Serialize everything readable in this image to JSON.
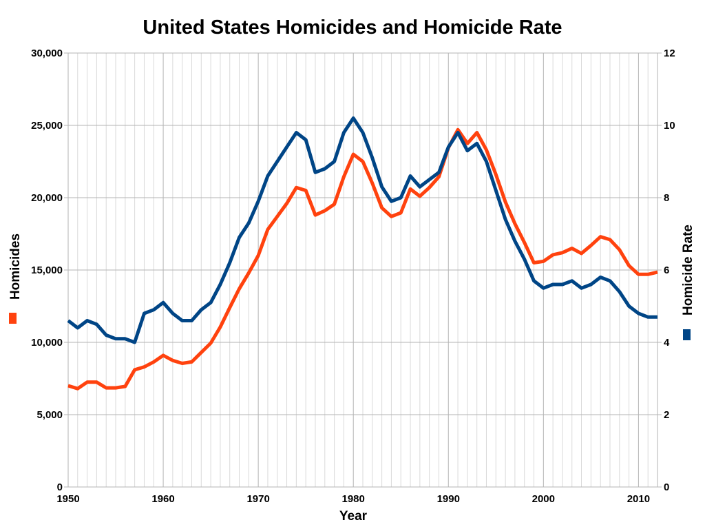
{
  "chart_data": {
    "type": "line",
    "title": "United States Homicides and Homicide Rate",
    "xlabel": "Year",
    "ylabel_left": "Homicides",
    "ylabel_right": "Homicide Rate",
    "xlim": [
      1950,
      2012
    ],
    "x_ticks": [
      1950,
      1960,
      1970,
      1980,
      1990,
      2000,
      2010
    ],
    "x_minor_grid_step": 1,
    "ylim_left": [
      0,
      30000
    ],
    "y_ticks_left": [
      "0",
      "5,000",
      "10,000",
      "15,000",
      "20,000",
      "25,000",
      "30,000"
    ],
    "ylim_right": [
      0,
      12
    ],
    "y_ticks_right": [
      "0",
      "2",
      "4",
      "6",
      "8",
      "10",
      "12"
    ],
    "grid": true,
    "x": [
      1950,
      1951,
      1952,
      1953,
      1954,
      1955,
      1956,
      1957,
      1958,
      1959,
      1960,
      1961,
      1962,
      1963,
      1964,
      1965,
      1966,
      1967,
      1968,
      1969,
      1970,
      1971,
      1972,
      1973,
      1974,
      1975,
      1976,
      1977,
      1978,
      1979,
      1980,
      1981,
      1982,
      1983,
      1984,
      1985,
      1986,
      1987,
      1988,
      1989,
      1990,
      1991,
      1992,
      1993,
      1994,
      1995,
      1996,
      1997,
      1998,
      1999,
      2000,
      2001,
      2002,
      2003,
      2004,
      2005,
      2006,
      2007,
      2008,
      2009,
      2010,
      2011,
      2012
    ],
    "series": [
      {
        "name": "Homicides",
        "axis": "left",
        "color": "#ff420e",
        "values": [
          7000,
          6800,
          7250,
          7250,
          6850,
          6850,
          6950,
          8100,
          8300,
          8650,
          9100,
          8750,
          8550,
          8650,
          9300,
          9950,
          11050,
          12400,
          13700,
          14800,
          16000,
          17800,
          18700,
          19600,
          20700,
          20500,
          18800,
          19100,
          19550,
          21450,
          23000,
          22500,
          21000,
          19300,
          18700,
          18950,
          20600,
          20100,
          20700,
          21450,
          23450,
          24700,
          23750,
          24500,
          23300,
          21600,
          19700,
          18200,
          16900,
          15500,
          15600,
          16050,
          16200,
          16500,
          16150,
          16700,
          17300,
          17100,
          16400,
          15300,
          14700,
          14700,
          14850
        ]
      },
      {
        "name": "Homicide Rate",
        "axis": "right",
        "color": "#004586",
        "values": [
          4.6,
          4.4,
          4.6,
          4.5,
          4.2,
          4.1,
          4.1,
          4.0,
          4.8,
          4.9,
          5.1,
          4.8,
          4.6,
          4.6,
          4.9,
          5.1,
          5.6,
          6.2,
          6.9,
          7.3,
          7.9,
          8.6,
          9.0,
          9.4,
          9.8,
          9.6,
          8.7,
          8.8,
          9.0,
          9.8,
          10.2,
          9.8,
          9.1,
          8.3,
          7.9,
          8.0,
          8.6,
          8.3,
          8.5,
          8.7,
          9.4,
          9.8,
          9.3,
          9.5,
          9.0,
          8.2,
          7.4,
          6.8,
          6.3,
          5.7,
          5.5,
          5.6,
          5.6,
          5.7,
          5.5,
          5.6,
          5.8,
          5.7,
          5.4,
          5.0,
          4.8,
          4.7,
          4.7
        ]
      }
    ]
  }
}
